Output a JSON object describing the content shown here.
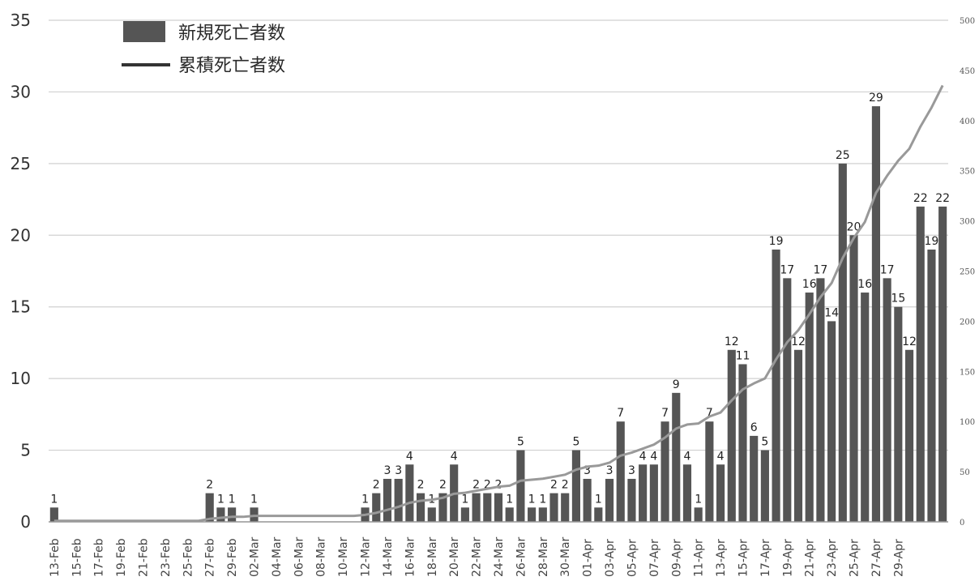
{
  "chart_data": {
    "type": "bar",
    "title": "",
    "xlabel": "",
    "ylabel": "",
    "ylim": [
      0,
      35
    ],
    "y2lim": [
      0,
      500
    ],
    "yticks": [
      0,
      5,
      10,
      15,
      20,
      25,
      30,
      35
    ],
    "y2ticks": [
      0,
      50,
      100,
      150,
      200,
      250,
      300,
      350,
      400,
      450,
      500
    ],
    "grid": true,
    "legend": "top-left",
    "legend_entries": [
      {
        "name": "新規死亡者数",
        "type": "bar"
      },
      {
        "name": "累積死亡者数",
        "type": "line"
      }
    ],
    "colors": {
      "bar": "#555555",
      "line": "#999999",
      "grid": "#d0d0d0"
    },
    "x_labels": [
      "13-Feb",
      "15-Feb",
      "17-Feb",
      "19-Feb",
      "21-Feb",
      "23-Feb",
      "25-Feb",
      "27-Feb",
      "29-Feb",
      "02-Mar",
      "04-Mar",
      "06-Mar",
      "08-Mar",
      "10-Mar",
      "12-Mar",
      "14-Mar",
      "16-Mar",
      "18-Mar",
      "20-Mar",
      "22-Mar",
      "24-Mar",
      "26-Mar",
      "28-Mar",
      "30-Mar",
      "01-Apr",
      "03-Apr",
      "05-Apr",
      "07-Apr",
      "09-Apr",
      "11-Apr",
      "13-Apr",
      "15-Apr",
      "17-Apr",
      "19-Apr",
      "21-Apr",
      "23-Apr",
      "25-Apr",
      "27-Apr",
      "29-Apr"
    ],
    "series": [
      {
        "name": "新規死亡者数",
        "type": "bar",
        "axis": "left",
        "values": [
          1,
          0,
          0,
          0,
          0,
          0,
          0,
          0,
          0,
          0,
          0,
          0,
          0,
          0,
          2,
          1,
          1,
          0,
          1,
          0,
          0,
          0,
          0,
          0,
          0,
          0,
          0,
          0,
          1,
          2,
          3,
          3,
          4,
          2,
          1,
          2,
          4,
          1,
          2,
          2,
          2,
          1,
          5,
          1,
          1,
          2,
          2,
          5,
          3,
          1,
          3,
          7,
          3,
          4,
          4,
          7,
          9,
          4,
          1,
          7,
          4,
          12,
          11,
          6,
          5,
          19,
          17,
          12,
          16,
          17,
          14,
          25,
          20,
          16,
          29,
          17,
          15,
          12,
          22,
          19,
          22
        ]
      },
      {
        "name": "累積死亡者数",
        "type": "line",
        "axis": "right",
        "values": [
          1,
          1,
          1,
          1,
          1,
          1,
          1,
          1,
          1,
          1,
          1,
          1,
          1,
          1,
          3,
          4,
          5,
          5,
          6,
          6,
          6,
          6,
          6,
          6,
          6,
          6,
          6,
          6,
          7,
          9,
          12,
          15,
          19,
          21,
          22,
          24,
          28,
          29,
          31,
          33,
          35,
          36,
          41,
          42,
          43,
          45,
          47,
          52,
          55,
          56,
          59,
          66,
          69,
          73,
          77,
          84,
          93,
          97,
          98,
          105,
          109,
          121,
          132,
          138,
          143,
          162,
          179,
          191,
          207,
          224,
          238,
          263,
          283,
          299,
          328,
          345,
          360,
          372,
          394,
          413,
          435
        ]
      }
    ]
  }
}
